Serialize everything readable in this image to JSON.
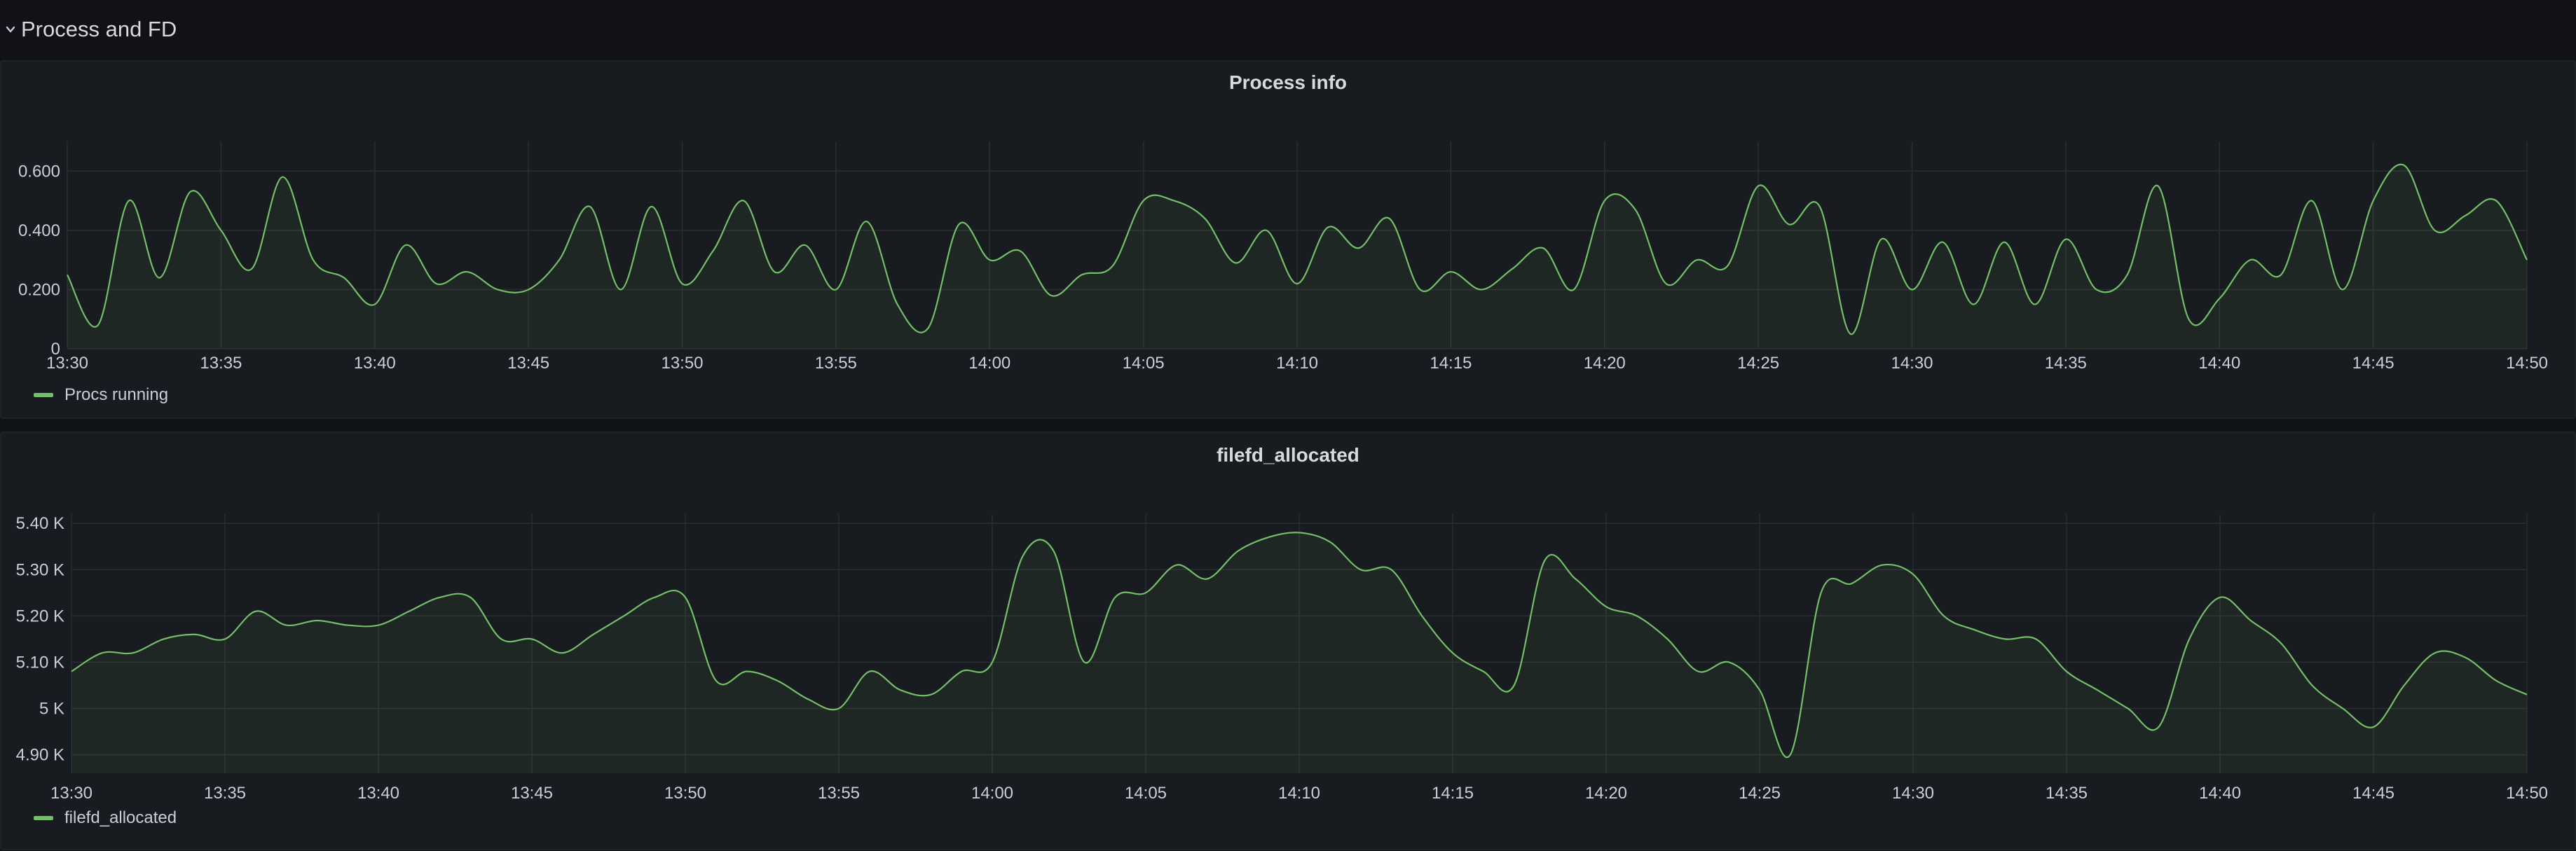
{
  "row": {
    "title": "Process and FD",
    "collapse_icon": "chevron-down-icon"
  },
  "colors": {
    "series": "#73bf69",
    "grid": "#2a2d32",
    "text": "#ccccdc"
  },
  "panels": [
    {
      "title": "Process info",
      "legend": "Procs running"
    },
    {
      "title": "filefd_allocated",
      "legend": "filefd_allocated"
    }
  ],
  "chart_data": [
    {
      "type": "area",
      "title": "Process info",
      "x_ticks": [
        "13:30",
        "13:35",
        "13:40",
        "13:45",
        "13:50",
        "13:55",
        "14:00",
        "14:05",
        "14:10",
        "14:15",
        "14:20",
        "14:25",
        "14:30",
        "14:35",
        "14:40",
        "14:45",
        "14:50"
      ],
      "y_ticks": [
        "0",
        "0.200",
        "0.400",
        "0.600"
      ],
      "ylim": [
        0,
        0.7
      ],
      "grid": true,
      "legend_placement": "bottom-left",
      "series": [
        {
          "name": "Procs running",
          "x": [
            "13:30",
            "13:31",
            "13:32",
            "13:33",
            "13:34",
            "13:35",
            "13:36",
            "13:37",
            "13:38",
            "13:39",
            "13:40",
            "13:41",
            "13:42",
            "13:43",
            "13:44",
            "13:45",
            "13:46",
            "13:47",
            "13:48",
            "13:49",
            "13:50",
            "13:51",
            "13:52",
            "13:53",
            "13:54",
            "13:55",
            "13:56",
            "13:57",
            "13:58",
            "13:59",
            "14:00",
            "14:01",
            "14:02",
            "14:03",
            "14:04",
            "14:05",
            "14:06",
            "14:07",
            "14:08",
            "14:09",
            "14:10",
            "14:11",
            "14:12",
            "14:13",
            "14:14",
            "14:15",
            "14:16",
            "14:17",
            "14:18",
            "14:19",
            "14:20",
            "14:21",
            "14:22",
            "14:23",
            "14:24",
            "14:25",
            "14:26",
            "14:27",
            "14:28",
            "14:29",
            "14:30",
            "14:31",
            "14:32",
            "14:33",
            "14:34",
            "14:35",
            "14:36",
            "14:37",
            "14:38",
            "14:39",
            "14:40",
            "14:41",
            "14:42",
            "14:43",
            "14:44",
            "14:45",
            "14:46",
            "14:47",
            "14:48",
            "14:49",
            "14:50"
          ],
          "values": [
            0.25,
            0.08,
            0.5,
            0.24,
            0.53,
            0.4,
            0.27,
            0.58,
            0.3,
            0.24,
            0.15,
            0.35,
            0.22,
            0.26,
            0.2,
            0.2,
            0.3,
            0.48,
            0.2,
            0.48,
            0.22,
            0.33,
            0.5,
            0.26,
            0.35,
            0.2,
            0.43,
            0.15,
            0.07,
            0.42,
            0.3,
            0.33,
            0.18,
            0.25,
            0.28,
            0.5,
            0.5,
            0.44,
            0.29,
            0.4,
            0.22,
            0.41,
            0.34,
            0.44,
            0.2,
            0.26,
            0.2,
            0.27,
            0.34,
            0.2,
            0.5,
            0.47,
            0.22,
            0.3,
            0.28,
            0.55,
            0.42,
            0.48,
            0.05,
            0.37,
            0.2,
            0.36,
            0.15,
            0.36,
            0.15,
            0.37,
            0.2,
            0.25,
            0.55,
            0.1,
            0.17,
            0.3,
            0.25,
            0.5,
            0.2,
            0.5,
            0.62,
            0.4,
            0.45,
            0.5,
            0.3
          ]
        }
      ]
    },
    {
      "type": "area",
      "title": "filefd_allocated",
      "x_ticks": [
        "13:30",
        "13:35",
        "13:40",
        "13:45",
        "13:50",
        "13:55",
        "14:00",
        "14:05",
        "14:10",
        "14:15",
        "14:20",
        "14:25",
        "14:30",
        "14:35",
        "14:40",
        "14:45",
        "14:50"
      ],
      "y_ticks": [
        "4.90 K",
        "5 K",
        "5.10 K",
        "5.20 K",
        "5.30 K",
        "5.40 K"
      ],
      "ylim": [
        4860,
        5420
      ],
      "grid": true,
      "legend_placement": "bottom-left",
      "series": [
        {
          "name": "filefd_allocated",
          "x": [
            "13:30",
            "13:31",
            "13:32",
            "13:33",
            "13:34",
            "13:35",
            "13:36",
            "13:37",
            "13:38",
            "13:39",
            "13:40",
            "13:41",
            "13:42",
            "13:43",
            "13:44",
            "13:45",
            "13:46",
            "13:47",
            "13:48",
            "13:49",
            "13:50",
            "13:51",
            "13:52",
            "13:53",
            "13:54",
            "13:55",
            "13:56",
            "13:57",
            "13:58",
            "13:59",
            "14:00",
            "14:01",
            "14:02",
            "14:03",
            "14:04",
            "14:05",
            "14:06",
            "14:07",
            "14:08",
            "14:09",
            "14:10",
            "14:11",
            "14:12",
            "14:13",
            "14:14",
            "14:15",
            "14:16",
            "14:17",
            "14:18",
            "14:19",
            "14:20",
            "14:21",
            "14:22",
            "14:23",
            "14:24",
            "14:25",
            "14:26",
            "14:27",
            "14:28",
            "14:29",
            "14:30",
            "14:31",
            "14:32",
            "14:33",
            "14:34",
            "14:35",
            "14:36",
            "14:37",
            "14:38",
            "14:39",
            "14:40",
            "14:41",
            "14:42",
            "14:43",
            "14:44",
            "14:45",
            "14:46",
            "14:47",
            "14:48",
            "14:49",
            "14:50"
          ],
          "values": [
            5080,
            5120,
            5120,
            5150,
            5160,
            5150,
            5210,
            5180,
            5190,
            5180,
            5180,
            5210,
            5240,
            5240,
            5150,
            5150,
            5120,
            5160,
            5200,
            5240,
            5240,
            5060,
            5080,
            5060,
            5020,
            5000,
            5080,
            5040,
            5030,
            5080,
            5100,
            5330,
            5340,
            5100,
            5240,
            5250,
            5310,
            5280,
            5340,
            5370,
            5380,
            5360,
            5300,
            5300,
            5200,
            5120,
            5080,
            5050,
            5320,
            5280,
            5220,
            5200,
            5150,
            5080,
            5100,
            5040,
            4900,
            5250,
            5270,
            5310,
            5290,
            5200,
            5170,
            5150,
            5150,
            5080,
            5040,
            5000,
            4960,
            5150,
            5240,
            5190,
            5140,
            5050,
            5000,
            4960,
            5050,
            5120,
            5110,
            5060,
            5030
          ]
        }
      ]
    }
  ]
}
